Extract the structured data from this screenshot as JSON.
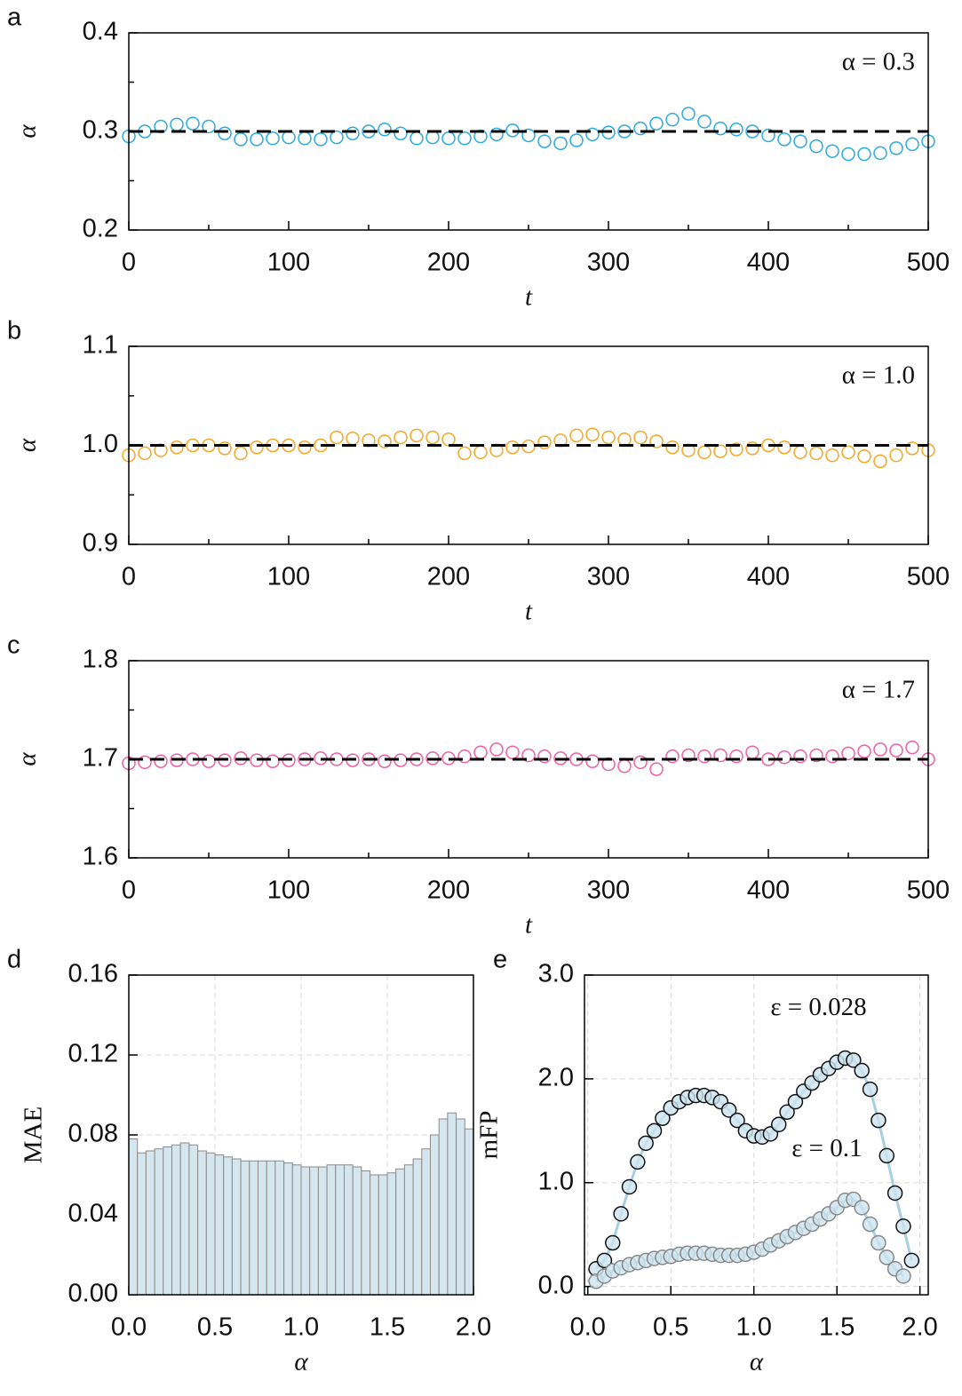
{
  "chart_data": [
    {
      "type": "scatter",
      "panel": "a",
      "xlabel": "t",
      "ylabel": "α",
      "annotation": "α = 0.3",
      "hline": 0.3,
      "color": "#29aae1",
      "x": [
        0,
        10,
        20,
        30,
        40,
        50,
        60,
        70,
        80,
        90,
        100,
        110,
        120,
        130,
        140,
        150,
        160,
        170,
        180,
        190,
        200,
        210,
        220,
        230,
        240,
        250,
        260,
        270,
        280,
        290,
        300,
        310,
        320,
        330,
        340,
        350,
        360,
        370,
        380,
        390,
        400,
        410,
        420,
        430,
        440,
        450,
        460,
        470,
        480,
        490,
        500
      ],
      "values": [
        0.295,
        0.3,
        0.305,
        0.307,
        0.308,
        0.305,
        0.298,
        0.292,
        0.292,
        0.293,
        0.294,
        0.293,
        0.292,
        0.294,
        0.298,
        0.3,
        0.302,
        0.298,
        0.293,
        0.294,
        0.293,
        0.293,
        0.295,
        0.297,
        0.301,
        0.296,
        0.29,
        0.288,
        0.291,
        0.297,
        0.299,
        0.3,
        0.303,
        0.308,
        0.312,
        0.318,
        0.31,
        0.303,
        0.302,
        0.3,
        0.296,
        0.292,
        0.29,
        0.285,
        0.28,
        0.277,
        0.277,
        0.278,
        0.283,
        0.287,
        0.29
      ],
      "xlim": [
        0,
        500
      ],
      "xticks": [
        0,
        100,
        200,
        300,
        400,
        500
      ],
      "xminor": [
        50,
        150,
        250,
        350,
        450
      ],
      "ylim": [
        0.2,
        0.4
      ],
      "yticks": [
        0.2,
        0.3,
        0.4
      ],
      "yminor": [
        0.25,
        0.35
      ]
    },
    {
      "type": "scatter",
      "panel": "b",
      "xlabel": "t",
      "ylabel": "α",
      "annotation": "α = 1.0",
      "hline": 1.0,
      "color": "#f5a623",
      "x": [
        0,
        10,
        20,
        30,
        40,
        50,
        60,
        70,
        80,
        90,
        100,
        110,
        120,
        130,
        140,
        150,
        160,
        170,
        180,
        190,
        200,
        210,
        220,
        230,
        240,
        250,
        260,
        270,
        280,
        290,
        300,
        310,
        320,
        330,
        340,
        350,
        360,
        370,
        380,
        390,
        400,
        410,
        420,
        430,
        440,
        450,
        460,
        470,
        480,
        490,
        500
      ],
      "values": [
        0.99,
        0.992,
        0.995,
        0.998,
        1.0,
        1.0,
        0.997,
        0.992,
        0.998,
        1.0,
        1.0,
        0.998,
        1.0,
        1.008,
        1.007,
        1.005,
        1.004,
        1.008,
        1.01,
        1.008,
        1.006,
        0.992,
        0.993,
        0.995,
        0.998,
        0.999,
        1.003,
        1.005,
        1.01,
        1.011,
        1.008,
        1.006,
        1.008,
        1.004,
        0.998,
        0.995,
        0.993,
        0.994,
        0.996,
        0.997,
        1.0,
        0.998,
        0.993,
        0.992,
        0.99,
        0.993,
        0.989,
        0.984,
        0.99,
        0.997,
        0.995
      ],
      "xlim": [
        0,
        500
      ],
      "xticks": [
        0,
        100,
        200,
        300,
        400,
        500
      ],
      "xminor": [
        50,
        150,
        250,
        350,
        450
      ],
      "ylim": [
        0.9,
        1.1
      ],
      "yticks": [
        0.9,
        {
          "value": 1,
          "label": "1.0"
        },
        1.1
      ],
      "yminor": [
        0.95,
        1.05
      ]
    },
    {
      "type": "scatter",
      "panel": "c",
      "xlabel": "t",
      "ylabel": "α",
      "annotation": "α = 1.7",
      "hline": 1.7,
      "color": "#ef5fa7",
      "x": [
        0,
        10,
        20,
        30,
        40,
        50,
        60,
        70,
        80,
        90,
        100,
        110,
        120,
        130,
        140,
        150,
        160,
        170,
        180,
        190,
        200,
        210,
        220,
        230,
        240,
        250,
        260,
        270,
        280,
        290,
        300,
        310,
        320,
        330,
        340,
        350,
        360,
        370,
        380,
        390,
        400,
        410,
        420,
        430,
        440,
        450,
        460,
        470,
        480,
        490,
        500
      ],
      "values": [
        1.696,
        1.697,
        1.698,
        1.699,
        1.7,
        1.698,
        1.699,
        1.701,
        1.699,
        1.698,
        1.699,
        1.7,
        1.701,
        1.7,
        1.699,
        1.7,
        1.698,
        1.699,
        1.7,
        1.701,
        1.701,
        1.703,
        1.707,
        1.71,
        1.707,
        1.704,
        1.703,
        1.701,
        1.7,
        1.698,
        1.695,
        1.693,
        1.697,
        1.69,
        1.703,
        1.704,
        1.703,
        1.704,
        1.703,
        1.707,
        1.7,
        1.702,
        1.703,
        1.704,
        1.703,
        1.706,
        1.708,
        1.71,
        1.709,
        1.712,
        1.7
      ],
      "xlim": [
        0,
        500
      ],
      "xticks": [
        0,
        100,
        200,
        300,
        400,
        500
      ],
      "xminor": [
        50,
        150,
        250,
        350,
        450
      ],
      "ylim": [
        1.6,
        1.8
      ],
      "yticks": [
        1.6,
        1.7,
        1.8
      ],
      "yminor": [
        1.65,
        1.75
      ]
    },
    {
      "type": "histogram",
      "panel": "d",
      "xlabel": "α",
      "ylabel": "MAE",
      "color": "#d6e6ee",
      "grid": true,
      "bins": [
        0,
        0.05,
        0.1,
        0.15,
        0.2,
        0.25,
        0.3,
        0.35,
        0.4,
        0.45,
        0.5,
        0.55,
        0.6,
        0.65,
        0.7,
        0.75,
        0.8,
        0.85,
        0.9,
        0.95,
        1.0,
        1.05,
        1.1,
        1.15,
        1.2,
        1.25,
        1.3,
        1.35,
        1.4,
        1.45,
        1.5,
        1.55,
        1.6,
        1.65,
        1.7,
        1.75,
        1.8,
        1.85,
        1.9,
        1.95,
        2.0
      ],
      "values": [
        0.078,
        0.071,
        0.072,
        0.073,
        0.074,
        0.075,
        0.076,
        0.075,
        0.072,
        0.071,
        0.07,
        0.069,
        0.068,
        0.067,
        0.067,
        0.067,
        0.067,
        0.067,
        0.066,
        0.065,
        0.064,
        0.064,
        0.064,
        0.065,
        0.065,
        0.065,
        0.064,
        0.062,
        0.06,
        0.06,
        0.061,
        0.063,
        0.065,
        0.068,
        0.073,
        0.08,
        0.088,
        0.091,
        0.088,
        0.083
      ],
      "xlim": [
        0,
        2.0
      ],
      "xticks": [
        {
          "value": 0,
          "label": "0.0"
        },
        0.5,
        {
          "value": 1,
          "label": "1.0"
        },
        1.5,
        {
          "value": 2,
          "label": "2.0"
        }
      ],
      "ylim": [
        0,
        0.16
      ],
      "yticks": [
        {
          "value": 0,
          "label": "0.00"
        },
        0.04,
        0.08,
        0.12,
        0.16
      ]
    },
    {
      "type": "line",
      "panel": "e",
      "xlabel": "α",
      "ylabel": "mFP",
      "line_color": "#a6cfe2",
      "marker_fill": "#cde4ef",
      "grid": true,
      "series": [
        {
          "name": "ε = 0.028",
          "color": "#111111",
          "x": [
            0.05,
            0.1,
            0.15,
            0.2,
            0.25,
            0.3,
            0.35,
            0.4,
            0.45,
            0.5,
            0.55,
            0.6,
            0.65,
            0.7,
            0.75,
            0.8,
            0.85,
            0.9,
            0.95,
            1.0,
            1.05,
            1.1,
            1.15,
            1.2,
            1.25,
            1.3,
            1.35,
            1.4,
            1.45,
            1.5,
            1.55,
            1.6,
            1.65,
            1.7,
            1.75,
            1.8,
            1.85,
            1.9,
            1.95
          ],
          "values": [
            0.17,
            0.25,
            0.42,
            0.7,
            0.96,
            1.2,
            1.38,
            1.5,
            1.62,
            1.72,
            1.78,
            1.82,
            1.84,
            1.84,
            1.82,
            1.78,
            1.7,
            1.6,
            1.5,
            1.45,
            1.44,
            1.47,
            1.56,
            1.68,
            1.78,
            1.88,
            1.96,
            2.04,
            2.1,
            2.16,
            2.2,
            2.18,
            2.08,
            1.9,
            1.6,
            1.26,
            0.9,
            0.58,
            0.25
          ]
        },
        {
          "name": "ε = 0.1",
          "color": "#888888",
          "x": [
            0.05,
            0.1,
            0.15,
            0.2,
            0.25,
            0.3,
            0.35,
            0.4,
            0.45,
            0.5,
            0.55,
            0.6,
            0.65,
            0.7,
            0.75,
            0.8,
            0.85,
            0.9,
            0.95,
            1.0,
            1.05,
            1.1,
            1.15,
            1.2,
            1.25,
            1.3,
            1.35,
            1.4,
            1.45,
            1.5,
            1.55,
            1.6,
            1.65,
            1.7,
            1.75,
            1.8,
            1.85,
            1.9
          ],
          "values": [
            0.05,
            0.1,
            0.15,
            0.18,
            0.21,
            0.23,
            0.25,
            0.27,
            0.28,
            0.29,
            0.31,
            0.32,
            0.32,
            0.32,
            0.31,
            0.3,
            0.3,
            0.3,
            0.31,
            0.33,
            0.36,
            0.4,
            0.44,
            0.48,
            0.52,
            0.56,
            0.6,
            0.65,
            0.7,
            0.76,
            0.83,
            0.84,
            0.76,
            0.6,
            0.42,
            0.28,
            0.17,
            0.1
          ]
        }
      ],
      "xlim": [
        -0.02,
        2.05
      ],
      "xticks": [
        {
          "value": 0,
          "label": "0.0"
        },
        0.5,
        {
          "value": 1,
          "label": "1.0"
        },
        1.5,
        {
          "value": 2,
          "label": "2.0"
        }
      ],
      "ylim": [
        -0.08,
        3.0
      ],
      "yticks": [
        {
          "value": 0,
          "label": "0.0"
        },
        {
          "value": 1,
          "label": "1.0"
        },
        {
          "value": 2,
          "label": "2.0"
        },
        {
          "value": 3,
          "label": "3.0"
        }
      ]
    }
  ]
}
